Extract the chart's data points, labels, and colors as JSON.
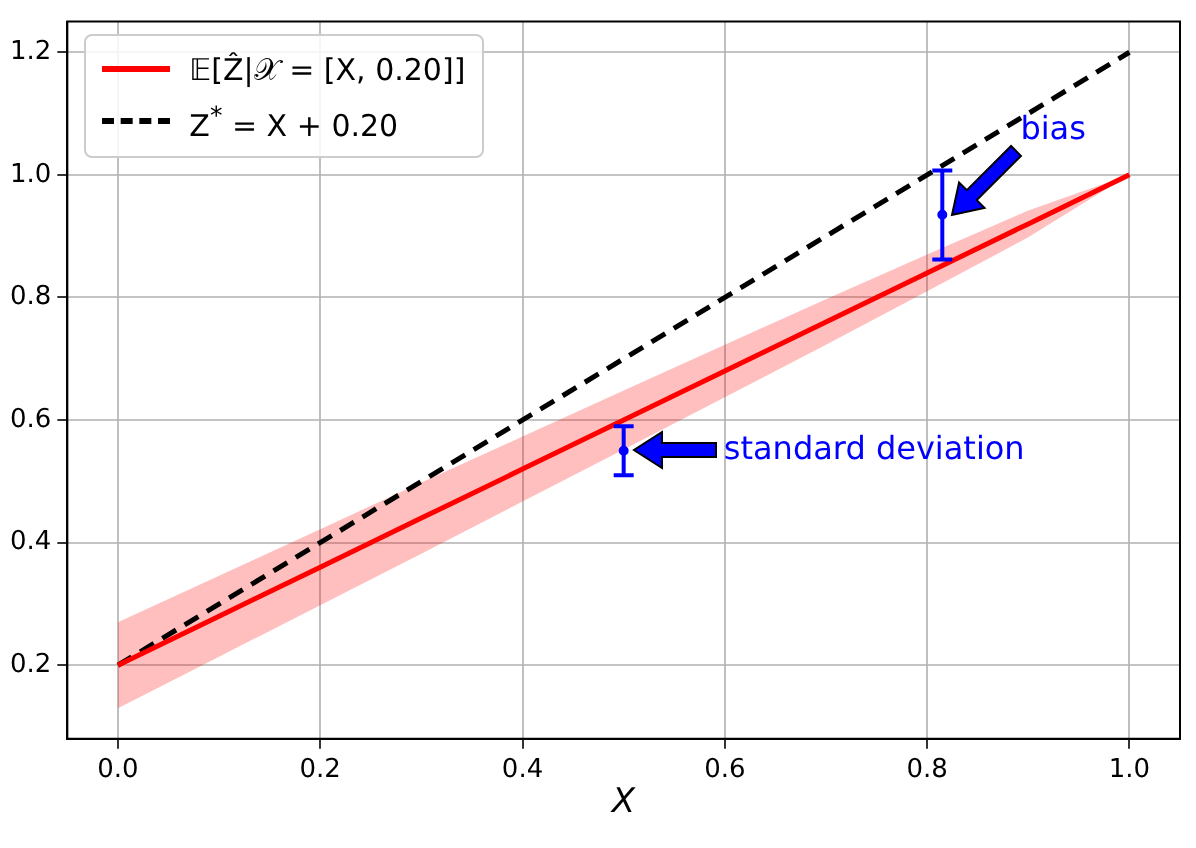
{
  "chart_data": {
    "type": "line",
    "xlabel": "X",
    "xlim": [
      -0.05,
      1.05
    ],
    "ylim": [
      0.08,
      1.25
    ],
    "xticks": [
      {
        "value": 0,
        "label": "0.0"
      },
      0.2,
      0.4,
      0.6,
      0.8,
      {
        "value": 1,
        "label": "1.0"
      }
    ],
    "yticks": [
      0.2,
      0.4,
      0.6,
      0.8,
      {
        "value": 1,
        "label": "1.0"
      },
      1.2
    ],
    "grid": true,
    "legend": "top left",
    "series": [
      {
        "type": "line",
        "name": "𝔼[Ẑ|𝒳 = [X, 0.20]]",
        "color": "#ff0000",
        "line_style": "solid",
        "x": [
          0,
          0.1,
          0.2,
          0.3,
          0.4,
          0.5,
          0.6,
          0.7,
          0.8,
          0.9,
          1
        ],
        "values": [
          0.2,
          0.28,
          0.36,
          0.44,
          0.52,
          0.6,
          0.68,
          0.76,
          0.84,
          0.92,
          1.0
        ],
        "lower": [
          0.13,
          0.214,
          0.298,
          0.382,
          0.467,
          0.552,
          0.637,
          0.723,
          0.81,
          0.898,
          1.0
        ],
        "upper": [
          0.27,
          0.346,
          0.422,
          0.498,
          0.573,
          0.648,
          0.723,
          0.797,
          0.87,
          0.942,
          1.0
        ]
      },
      {
        "type": "line",
        "name": "Z$^{*}$ = X + 0.20",
        "color": "#000000",
        "line_style": "dashed",
        "x": [
          0,
          1
        ],
        "values": [
          0.2,
          1.2
        ]
      },
      {
        "type": "scatter",
        "color": "#0000ff",
        "marker": "circle",
        "x": [
          0.5,
          0.815
        ],
        "values": [
          0.55,
          0.935
        ],
        "errors": [
          [
            0.51,
            0.59
          ],
          [
            0.862,
            1.007
          ]
        ]
      }
    ],
    "annotations": [
      {
        "text": "standard deviation",
        "x": 0.51,
        "y": 0.55
      },
      {
        "text": "bias",
        "x": 0.825,
        "y": 0.935
      }
    ]
  }
}
